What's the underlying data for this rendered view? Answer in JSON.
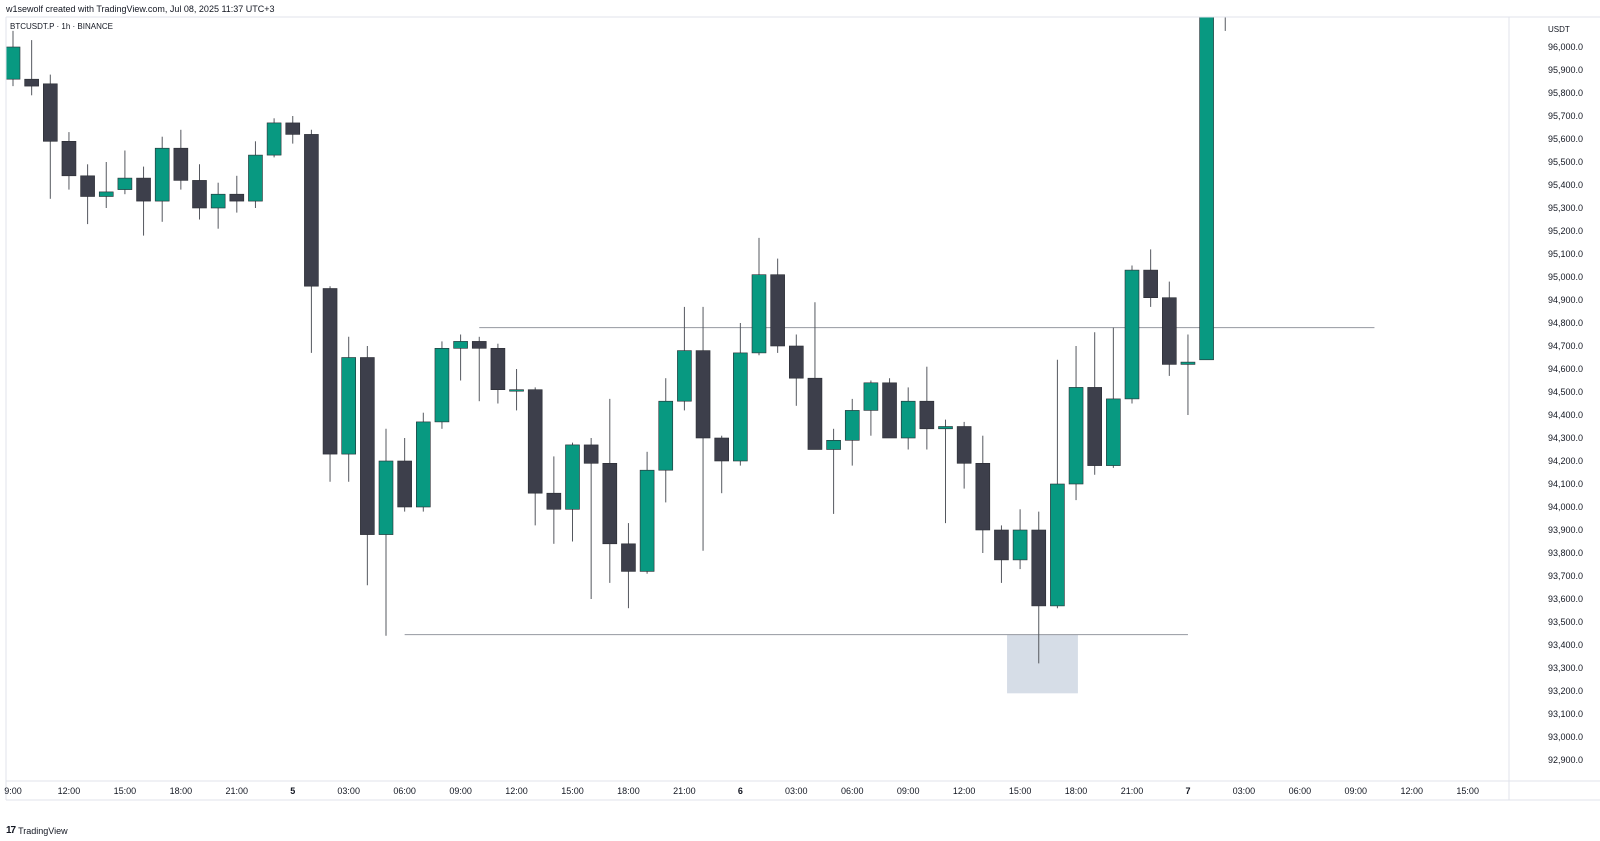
{
  "header": {
    "attribution": "w1sewolf created with TradingView.com, Jul 08, 2025 11:37 UTC+3",
    "symbol_line": "BTCUSDT.P · 1h · BINANCE"
  },
  "footer": {
    "logo_mark": "17",
    "brand": "TradingView"
  },
  "colors": {
    "up": "#089981",
    "down": "#3d3f4b",
    "line": "#9598a1",
    "zone": "#d6dde7"
  },
  "chart_data": {
    "type": "candlestick",
    "currency_label": "USDT",
    "ylim": [
      92850,
      96150
    ],
    "y_ticks": [
      96000,
      95900,
      95800,
      95700,
      95600,
      95500,
      95400,
      95300,
      95200,
      95100,
      95000,
      94900,
      94800,
      94700,
      94600,
      94500,
      94400,
      94300,
      94200,
      94100,
      94000,
      93900,
      93800,
      93700,
      93600,
      93500,
      93400,
      93300,
      93200,
      93100,
      93000,
      92900
    ],
    "y_tick_labels": [
      "96,000.0",
      "95,900.0",
      "95,800.0",
      "95,700.0",
      "95,600.0",
      "95,500.0",
      "95,400.0",
      "95,300.0",
      "95,200.0",
      "95,100.0",
      "95,000.0",
      "94,900.0",
      "94,800.0",
      "94,700.0",
      "94,600.0",
      "94,500.0",
      "94,400.0",
      "94,300.0",
      "94,200.0",
      "94,100.0",
      "94,000.0",
      "93,900.0",
      "93,800.0",
      "93,700.0",
      "93,600.0",
      "93,500.0",
      "93,400.0",
      "93,300.0",
      "93,200.0",
      "93,100.0",
      "93,000.0",
      "92,900.0"
    ],
    "x_ticks": [
      {
        "bar": 0,
        "label": "9:00"
      },
      {
        "bar": 3,
        "label": "12:00"
      },
      {
        "bar": 6,
        "label": "15:00"
      },
      {
        "bar": 9,
        "label": "18:00"
      },
      {
        "bar": 12,
        "label": "21:00"
      },
      {
        "bar": 15,
        "label": "5",
        "bold": true
      },
      {
        "bar": 18,
        "label": "03:00"
      },
      {
        "bar": 21,
        "label": "06:00"
      },
      {
        "bar": 24,
        "label": "09:00"
      },
      {
        "bar": 27,
        "label": "12:00"
      },
      {
        "bar": 30,
        "label": "15:00"
      },
      {
        "bar": 33,
        "label": "18:00"
      },
      {
        "bar": 36,
        "label": "21:00"
      },
      {
        "bar": 39,
        "label": "6",
        "bold": true
      },
      {
        "bar": 42,
        "label": "03:00"
      },
      {
        "bar": 45,
        "label": "06:00"
      },
      {
        "bar": 48,
        "label": "09:00"
      },
      {
        "bar": 51,
        "label": "12:00"
      },
      {
        "bar": 54,
        "label": "15:00"
      },
      {
        "bar": 57,
        "label": "18:00"
      },
      {
        "bar": 60,
        "label": "21:00"
      },
      {
        "bar": 63,
        "label": "7",
        "bold": true
      },
      {
        "bar": 66,
        "label": "03:00"
      },
      {
        "bar": 69,
        "label": "06:00"
      },
      {
        "bar": 72,
        "label": "09:00"
      },
      {
        "bar": 75,
        "label": "12:00"
      },
      {
        "bar": 78,
        "label": "15:00"
      }
    ],
    "candles": [
      {
        "o": 95860,
        "h": 96070,
        "l": 95830,
        "c": 96000
      },
      {
        "o": 95860,
        "h": 96030,
        "l": 95790,
        "c": 95830
      },
      {
        "o": 95840,
        "h": 95880,
        "l": 95340,
        "c": 95590
      },
      {
        "o": 95590,
        "h": 95630,
        "l": 95380,
        "c": 95440
      },
      {
        "o": 95440,
        "h": 95490,
        "l": 95230,
        "c": 95350
      },
      {
        "o": 95350,
        "h": 95500,
        "l": 95300,
        "c": 95370
      },
      {
        "o": 95380,
        "h": 95550,
        "l": 95360,
        "c": 95430
      },
      {
        "o": 95430,
        "h": 95480,
        "l": 95180,
        "c": 95330
      },
      {
        "o": 95330,
        "h": 95610,
        "l": 95240,
        "c": 95560
      },
      {
        "o": 95560,
        "h": 95640,
        "l": 95380,
        "c": 95420
      },
      {
        "o": 95420,
        "h": 95490,
        "l": 95250,
        "c": 95300
      },
      {
        "o": 95300,
        "h": 95410,
        "l": 95210,
        "c": 95360
      },
      {
        "o": 95360,
        "h": 95440,
        "l": 95280,
        "c": 95330
      },
      {
        "o": 95330,
        "h": 95590,
        "l": 95300,
        "c": 95530
      },
      {
        "o": 95530,
        "h": 95690,
        "l": 95520,
        "c": 95670
      },
      {
        "o": 95670,
        "h": 95700,
        "l": 95580,
        "c": 95620
      },
      {
        "o": 95620,
        "h": 95640,
        "l": 94670,
        "c": 94960
      },
      {
        "o": 94950,
        "h": 94960,
        "l": 94110,
        "c": 94230
      },
      {
        "o": 94230,
        "h": 94740,
        "l": 94110,
        "c": 94650
      },
      {
        "o": 94650,
        "h": 94700,
        "l": 93660,
        "c": 93880
      },
      {
        "o": 93880,
        "h": 94340,
        "l": 93440,
        "c": 94200
      },
      {
        "o": 94200,
        "h": 94300,
        "l": 93980,
        "c": 94000
      },
      {
        "o": 94000,
        "h": 94410,
        "l": 93980,
        "c": 94370
      },
      {
        "o": 94370,
        "h": 94720,
        "l": 94340,
        "c": 94690
      },
      {
        "o": 94690,
        "h": 94750,
        "l": 94550,
        "c": 94720
      },
      {
        "o": 94720,
        "h": 94740,
        "l": 94460,
        "c": 94690
      },
      {
        "o": 94690,
        "h": 94710,
        "l": 94450,
        "c": 94510
      },
      {
        "o": 94510,
        "h": 94600,
        "l": 94420,
        "c": 94510
      },
      {
        "o": 94510,
        "h": 94520,
        "l": 93920,
        "c": 94060
      },
      {
        "o": 94060,
        "h": 94220,
        "l": 93840,
        "c": 93990
      },
      {
        "o": 93990,
        "h": 94280,
        "l": 93850,
        "c": 94270
      },
      {
        "o": 94270,
        "h": 94300,
        "l": 93600,
        "c": 94190
      },
      {
        "o": 94190,
        "h": 94470,
        "l": 93670,
        "c": 93840
      },
      {
        "o": 93840,
        "h": 93930,
        "l": 93560,
        "c": 93720
      },
      {
        "o": 93720,
        "h": 94240,
        "l": 93710,
        "c": 94160
      },
      {
        "o": 94160,
        "h": 94560,
        "l": 94020,
        "c": 94460
      },
      {
        "o": 94460,
        "h": 94870,
        "l": 94420,
        "c": 94680
      },
      {
        "o": 94680,
        "h": 94870,
        "l": 93810,
        "c": 94300
      },
      {
        "o": 94300,
        "h": 94310,
        "l": 94060,
        "c": 94200
      },
      {
        "o": 94200,
        "h": 94800,
        "l": 94180,
        "c": 94670
      },
      {
        "o": 94670,
        "h": 95170,
        "l": 94660,
        "c": 95010
      },
      {
        "o": 95010,
        "h": 95080,
        "l": 94670,
        "c": 94700
      },
      {
        "o": 94700,
        "h": 94750,
        "l": 94440,
        "c": 94560
      },
      {
        "o": 94560,
        "h": 94890,
        "l": 94250,
        "c": 94250
      },
      {
        "o": 94250,
        "h": 94340,
        "l": 93970,
        "c": 94290
      },
      {
        "o": 94290,
        "h": 94470,
        "l": 94180,
        "c": 94420
      },
      {
        "o": 94420,
        "h": 94550,
        "l": 94310,
        "c": 94540
      },
      {
        "o": 94540,
        "h": 94560,
        "l": 94300,
        "c": 94300
      },
      {
        "o": 94300,
        "h": 94520,
        "l": 94250,
        "c": 94460
      },
      {
        "o": 94460,
        "h": 94610,
        "l": 94250,
        "c": 94340
      },
      {
        "o": 94340,
        "h": 94380,
        "l": 93930,
        "c": 94350
      },
      {
        "o": 94350,
        "h": 94370,
        "l": 94080,
        "c": 94190
      },
      {
        "o": 94190,
        "h": 94310,
        "l": 93800,
        "c": 93900
      },
      {
        "o": 93900,
        "h": 93920,
        "l": 93670,
        "c": 93770
      },
      {
        "o": 93770,
        "h": 93990,
        "l": 93730,
        "c": 93900
      },
      {
        "o": 93900,
        "h": 93980,
        "l": 93320,
        "c": 93570
      },
      {
        "o": 93570,
        "h": 94640,
        "l": 93560,
        "c": 94100
      },
      {
        "o": 94100,
        "h": 94700,
        "l": 94030,
        "c": 94520
      },
      {
        "o": 94520,
        "h": 94760,
        "l": 94140,
        "c": 94180
      },
      {
        "o": 94180,
        "h": 94780,
        "l": 94170,
        "c": 94470
      },
      {
        "o": 94470,
        "h": 95050,
        "l": 94450,
        "c": 95030
      },
      {
        "o": 95030,
        "h": 95120,
        "l": 94870,
        "c": 94910
      },
      {
        "o": 94910,
        "h": 94980,
        "l": 94570,
        "c": 94620
      },
      {
        "o": 94620,
        "h": 94750,
        "l": 94400,
        "c": 94630
      },
      {
        "o": 94640,
        "h": 96150,
        "l": 94640,
        "c": 96150
      },
      {
        "o": 96150,
        "h": 96150,
        "l": 96070,
        "c": 96150
      }
    ],
    "lines": [
      {
        "price": 94780,
        "from_bar": 25,
        "to_bar": 73
      },
      {
        "price": 93445,
        "from_bar": 21,
        "to_bar": 63
      }
    ],
    "zone": {
      "from_bar": 53.3,
      "to_bar": 57.1,
      "top": 93445,
      "bottom": 93190
    }
  }
}
